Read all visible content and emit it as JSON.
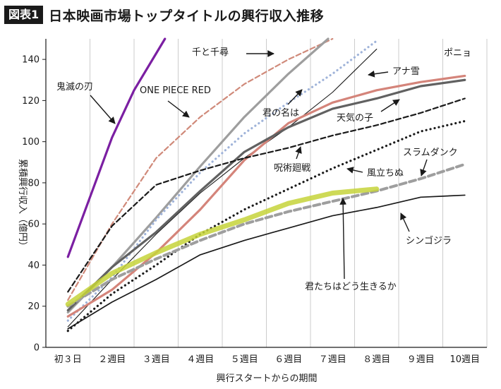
{
  "figure_label": "図表1",
  "title": "日本映画市場トップタイトルの興行収入推移",
  "chart_data": {
    "type": "line",
    "xlabel": "興行スタートからの期間",
    "ylabel": "累積興行収入（億円）",
    "ylim": [
      0,
      150
    ],
    "yticks": [
      0,
      20,
      40,
      60,
      80,
      100,
      120,
      140
    ],
    "grid": "vertical",
    "categories": [
      "初３日",
      "２週目",
      "３週目",
      "４週目",
      "５週目",
      "６週目",
      "７週目",
      "８週目",
      "９週目",
      "10週目"
    ],
    "series": [
      {
        "name": "鬼滅の刃",
        "color": "#7b1fa2",
        "style": "solid-thick",
        "x": [
          0,
          1,
          1.5,
          2.2
        ],
        "values": [
          44,
          102,
          125,
          150
        ]
      },
      {
        "name": "ONE PIECE RED",
        "color": "#d08a7a",
        "style": "dashed",
        "x": [
          0,
          1,
          2,
          3,
          4,
          5,
          6
        ],
        "values": [
          23,
          60,
          92,
          112,
          128,
          140,
          150
        ]
      },
      {
        "name": "千と千尋",
        "color": "#9e9e9e",
        "style": "solid-thick",
        "x": [
          0,
          1,
          2,
          3,
          4,
          5,
          5.9
        ],
        "values": [
          17,
          39,
          63,
          88,
          112,
          133,
          150
        ]
      },
      {
        "name": "君の名は",
        "color": "#9fb3d9",
        "style": "dotted-thick",
        "x": [
          0,
          1,
          2,
          3,
          4,
          5,
          6,
          7
        ],
        "values": [
          13,
          34,
          62,
          85,
          104,
          119,
          133,
          149
        ]
      },
      {
        "name": "アナ雪",
        "color": "#1a1a1a",
        "style": "solid-thin",
        "x": [
          0,
          1,
          2,
          3,
          4,
          5,
          6,
          7
        ],
        "values": [
          10,
          33,
          55,
          75,
          92,
          107,
          124,
          145
        ]
      },
      {
        "name": "ポニョ",
        "color": "#d4847a",
        "style": "solid-thick",
        "x": [
          0,
          1,
          2,
          3,
          4,
          5,
          6,
          7,
          8,
          9
        ],
        "values": [
          15,
          28,
          46,
          67,
          91,
          109,
          119,
          125,
          129,
          132
        ]
      },
      {
        "name": "天気の子",
        "color": "#616161",
        "style": "solid-thick",
        "x": [
          0,
          1,
          2,
          3,
          4,
          5,
          6,
          7,
          8,
          9
        ],
        "values": [
          18,
          39,
          56,
          76,
          95,
          107,
          116,
          121,
          127,
          130
        ]
      },
      {
        "name": "呪術廻戦",
        "color": "#1a1a1a",
        "style": "dashed",
        "x": [
          0,
          1,
          2,
          3,
          4,
          5,
          6,
          7,
          8,
          9
        ],
        "values": [
          27,
          59,
          79,
          86,
          92,
          97,
          103,
          108,
          114,
          121
        ]
      },
      {
        "name": "風立ちぬ",
        "color": "#1a1a1a",
        "style": "dotted-thick",
        "x": [
          0,
          1,
          2,
          3,
          4,
          5,
          6,
          7,
          8,
          9
        ],
        "values": [
          8,
          26,
          40,
          55,
          67,
          77,
          87,
          96,
          105,
          110
        ]
      },
      {
        "name": "スラムダンク",
        "color": "#9e9e9e",
        "style": "dashed-thick",
        "x": [
          0,
          1,
          2,
          3,
          4,
          5,
          6,
          7,
          8,
          9
        ],
        "values": [
          20,
          33,
          43,
          52,
          60,
          66,
          71,
          76,
          82,
          89
        ]
      },
      {
        "name": "君たちはどう生きるか",
        "color": "#c6d43a",
        "style": "solid-thick",
        "x": [
          0,
          1,
          2,
          3,
          4,
          5,
          6,
          7
        ],
        "values": [
          21,
          36,
          46,
          55,
          62,
          70,
          75,
          77
        ]
      },
      {
        "name": "シンゴジラ",
        "color": "#1a1a1a",
        "style": "solid",
        "x": [
          0,
          1,
          2,
          3,
          4,
          5,
          6,
          7,
          8,
          9
        ],
        "values": [
          9,
          22,
          33,
          45,
          52,
          58,
          64,
          68,
          73,
          74
        ]
      }
    ]
  }
}
